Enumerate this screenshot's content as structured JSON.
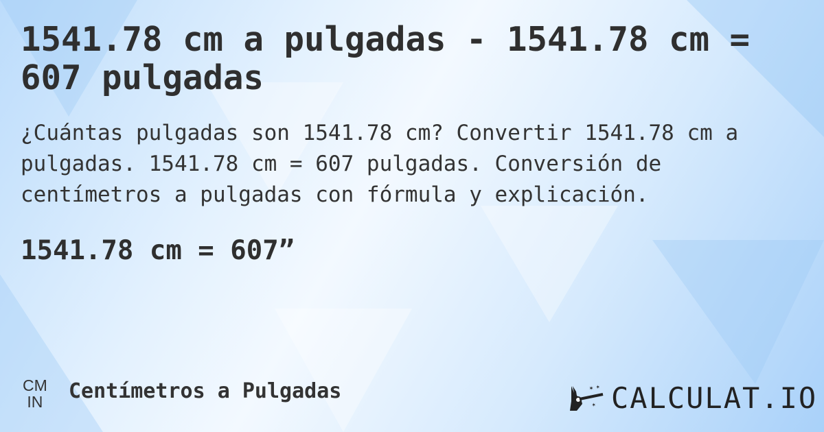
{
  "title": "1541.78 cm a pulgadas - 1541.78 cm = 607 pulgadas",
  "description": "¿Cuántas pulgadas son 1541.78 cm? Convertir 1541.78 cm a pulgadas. 1541.78 cm = 607 pulgadas. Conversión de centímetros a pulgadas con fórmula y explicación.",
  "result": "1541.78 cm = 607”",
  "footer": {
    "unit_from": "CM",
    "unit_to": "IN",
    "category": "Centímetros a Pulgadas",
    "logo": "CALCULAT.IO",
    "logo_icon": "magic-wand-hand-icon"
  },
  "colors": {
    "background": "#d6eafd",
    "text": "#333333"
  }
}
